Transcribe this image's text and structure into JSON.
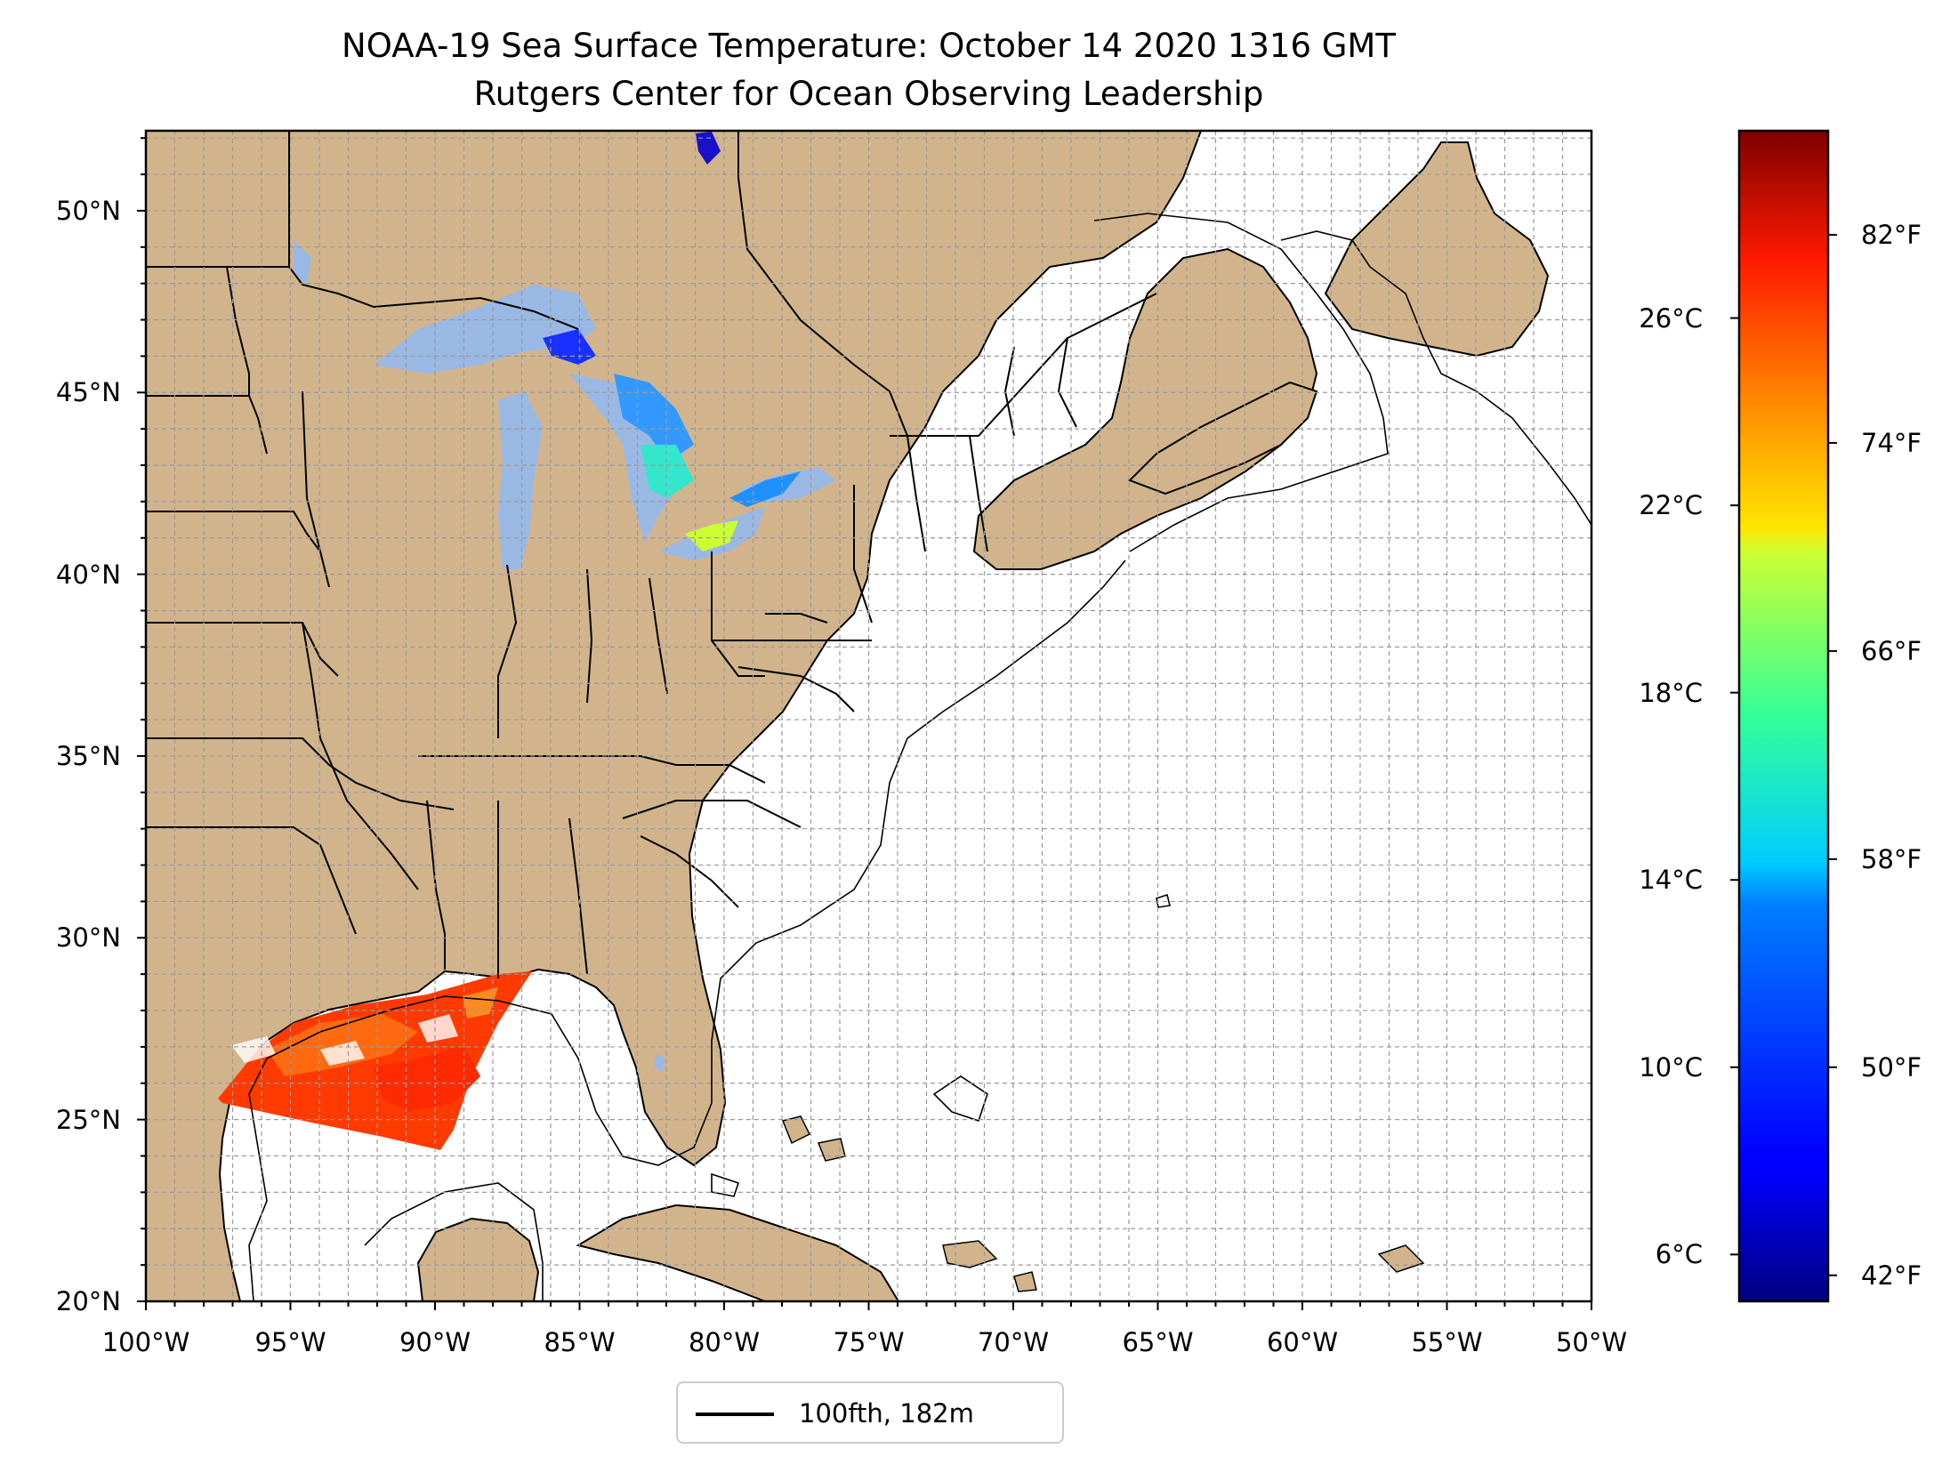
{
  "title": {
    "line1": "NOAA-19 Sea Surface Temperature: October 14 2020 1316 GMT",
    "line2": "Rutgers Center for Ocean Observing Leadership"
  },
  "map": {
    "lon_range": [
      -100,
      -50
    ],
    "lat_range": [
      20,
      52.2
    ],
    "lat_ticks": [
      {
        "value": 50,
        "label": "50°N"
      },
      {
        "value": 45,
        "label": "45°N"
      },
      {
        "value": 40,
        "label": "40°N"
      },
      {
        "value": 35,
        "label": "35°N"
      },
      {
        "value": 30,
        "label": "30°N"
      },
      {
        "value": 25,
        "label": "25°N"
      },
      {
        "value": 20,
        "label": "20°N"
      }
    ],
    "lon_ticks": [
      {
        "value": -100,
        "label": "100°W"
      },
      {
        "value": -95,
        "label": "95°W"
      },
      {
        "value": -90,
        "label": "90°W"
      },
      {
        "value": -85,
        "label": "85°W"
      },
      {
        "value": -80,
        "label": "80°W"
      },
      {
        "value": -75,
        "label": "75°W"
      },
      {
        "value": -70,
        "label": "70°W"
      },
      {
        "value": -65,
        "label": "65°W"
      },
      {
        "value": -60,
        "label": "60°W"
      },
      {
        "value": -55,
        "label": "55°W"
      },
      {
        "value": -50,
        "label": "50°W"
      }
    ],
    "land_color": "#d2b48c",
    "lake_color": "#9ab8e4",
    "ocean_color": "#ffffff"
  },
  "colorbar": {
    "colormap": "jet",
    "range_c": [
      5,
      30
    ],
    "celsius_ticks": [
      {
        "value": 26,
        "label": "26°C"
      },
      {
        "value": 22,
        "label": "22°C"
      },
      {
        "value": 18,
        "label": "18°C"
      },
      {
        "value": 14,
        "label": "14°C"
      },
      {
        "value": 10,
        "label": "10°C"
      },
      {
        "value": 6,
        "label": "6°C"
      }
    ],
    "fahrenheit_ticks": [
      {
        "value": 82,
        "label": "82°F"
      },
      {
        "value": 74,
        "label": "74°F"
      },
      {
        "value": 66,
        "label": "66°F"
      },
      {
        "value": 58,
        "label": "58°F"
      },
      {
        "value": 50,
        "label": "50°F"
      },
      {
        "value": 42,
        "label": "42°F"
      }
    ]
  },
  "legend": {
    "label": "100fth, 182m"
  }
}
